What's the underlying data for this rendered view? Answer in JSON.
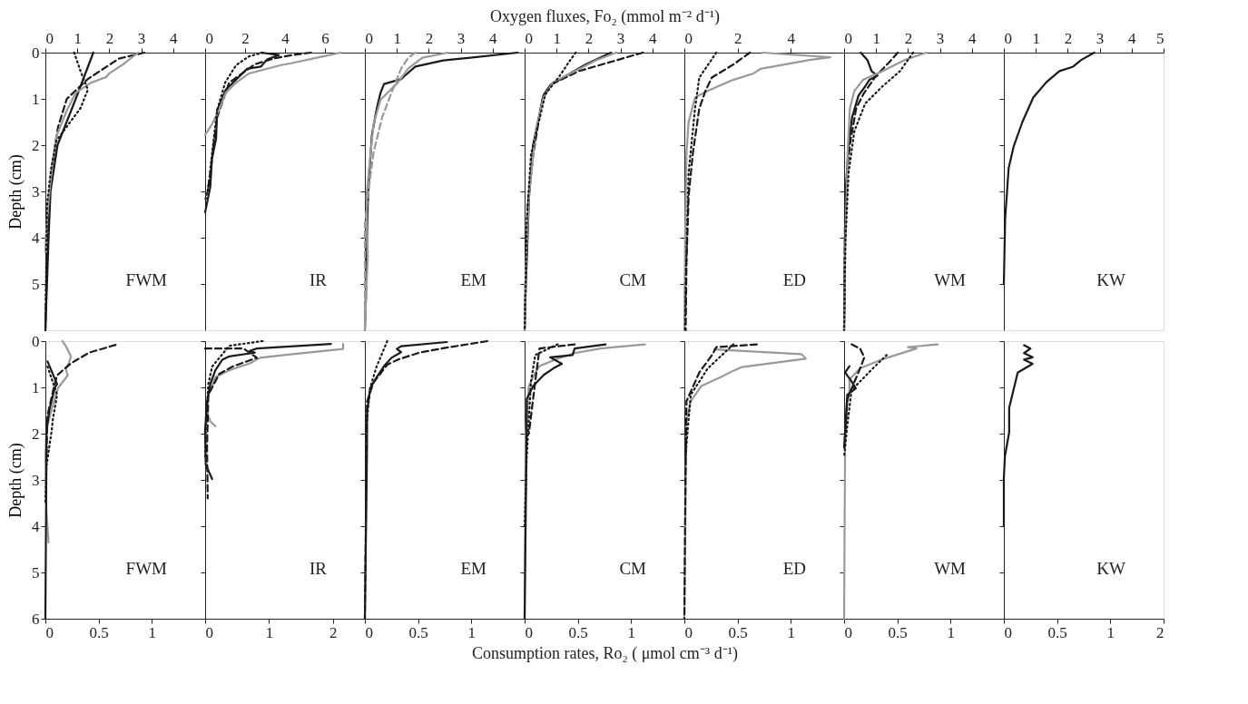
{
  "chart_data": [
    {
      "type": "line",
      "orientation": "horizontal",
      "ylabel": "Depth (cm)",
      "x2lim": [
        0,
        5
      ],
      "x2ticks": [
        0,
        1,
        2,
        3,
        4
      ],
      "ylim": [
        6,
        0
      ],
      "yticks": [
        0,
        1,
        2,
        3,
        4,
        5
      ],
      "grid": false,
      "annotations": [
        "FWM"
      ],
      "series": [
        {
          "axis": "x2",
          "color": "#1a1a1a",
          "line_style": "solid",
          "x": [
            0,
            1,
            2,
            3,
            4,
            5,
            6
          ],
          "values": [
            1.5,
            0.95,
            0.38,
            0.16,
            0.1,
            0.05,
            0
          ]
        },
        {
          "axis": "x2",
          "color": "#1a1a1a",
          "line_style": "dashed",
          "x": [
            0,
            0.13,
            0.57,
            1,
            1.6,
            2,
            3,
            4,
            5,
            6
          ],
          "values": [
            3.1,
            2.3,
            1.33,
            0.67,
            0.4,
            0.3,
            0.15,
            0.08,
            0.03,
            0
          ]
        },
        {
          "axis": "x2",
          "color": "#999999",
          "line_style": "solid",
          "x": [
            0,
            0.27,
            0.45,
            0.53,
            0.65,
            0.87,
            1.25,
            1.8,
            2.3,
            3,
            3.7,
            4.3
          ],
          "values": [
            2.9,
            2.4,
            2.0,
            1.9,
            1.43,
            0.95,
            0.67,
            0.35,
            0.24,
            0.13,
            0.04,
            0
          ]
        },
        {
          "axis": "x2",
          "color": "#1a1a1a",
          "line_style": "dotted",
          "x": [
            0,
            0.4,
            0.8,
            1.2,
            1.6,
            1.9,
            2.5,
            3.3,
            6
          ],
          "values": [
            0.9,
            1.1,
            1.33,
            1.1,
            0.67,
            0.35,
            0.18,
            0.05,
            0
          ]
        }
      ]
    },
    {
      "type": "line",
      "orientation": "horizontal",
      "x2lim": [
        0,
        8
      ],
      "x2ticks": [
        0,
        2,
        4,
        6
      ],
      "ylim": [
        6,
        0
      ],
      "yticks": [
        0,
        1,
        2,
        3,
        4,
        5
      ],
      "tick_labels": "x",
      "grid": false,
      "annotations": [
        "IR"
      ],
      "series": [
        {
          "axis": "x2",
          "color": "#1a1a1a",
          "line_style": "solid",
          "x": [
            0,
            0.05,
            0.15,
            0.3,
            0.35,
            0.8,
            1.25,
            1.86,
            2.3,
            2.9,
            3.45
          ],
          "values": [
            2.8,
            3.7,
            3.1,
            2.8,
            2.1,
            1.04,
            0.6,
            0.55,
            0.34,
            0.26,
            0
          ]
        },
        {
          "axis": "x2",
          "color": "#1a1a1a",
          "line_style": "dashed",
          "x": [
            0,
            0.05,
            0.13,
            0.25,
            0.65,
            1.4,
            2.0,
            2.6,
            3.0
          ],
          "values": [
            5.3,
            4.4,
            3.4,
            2.5,
            1.2,
            0.6,
            0.43,
            0.26,
            0.12
          ]
        },
        {
          "axis": "x2",
          "color": "#999999",
          "line_style": "solid",
          "x": [
            0,
            0.1,
            0.23,
            0.27,
            0.45,
            0.65,
            0.87,
            1.25,
            1.55,
            1.78
          ],
          "values": [
            6.8,
            5.7,
            4.3,
            3.8,
            2.2,
            1.55,
            1.03,
            0.69,
            0.34,
            0
          ]
        },
        {
          "axis": "x2",
          "color": "#1a1a1a",
          "line_style": "dotted",
          "x": [
            0,
            0.08,
            0.27,
            0.65,
            1.25,
            2.2,
            2.9,
            3.2
          ],
          "values": [
            2.9,
            2.2,
            1.55,
            1.0,
            0.6,
            0.34,
            0.17,
            0
          ]
        }
      ]
    },
    {
      "type": "line",
      "orientation": "horizontal",
      "x2lim": [
        0,
        5
      ],
      "x2ticks": [
        0,
        1,
        2,
        3,
        4
      ],
      "ylim": [
        6,
        0
      ],
      "yticks": [
        0,
        1,
        2,
        3,
        4,
        5
      ],
      "tick_labels": "x",
      "grid": false,
      "annotations": [
        "EM"
      ],
      "series": [
        {
          "axis": "x2",
          "color": "#1a1a1a",
          "line_style": "solid",
          "x": [
            0,
            0.11,
            0.17,
            0.3,
            0.5,
            0.57,
            0.68,
            0.87,
            1.18,
            1.78,
            2.6,
            3.3,
            4.8,
            6
          ],
          "values": [
            4.78,
            3.3,
            2.45,
            1.58,
            1.25,
            1.14,
            0.6,
            0.49,
            0.38,
            0.22,
            0.14,
            0.09,
            0.05,
            0
          ]
        },
        {
          "axis": "x2",
          "color": "#999999",
          "line_style": "solid",
          "x": [
            0,
            0.11,
            0.34,
            0.65,
            1.02,
            1.55,
            2.3,
            3.1,
            4.4,
            6
          ],
          "values": [
            2.6,
            1.8,
            1.36,
            1.03,
            0.49,
            0.27,
            0.16,
            0.05,
            0.09,
            0
          ]
        },
        {
          "axis": "x2",
          "color": "#999999",
          "line_style": "dashed",
          "x": [
            0,
            0.11,
            0.34,
            0.8,
            1.4,
            2.16,
            2.9,
            3.7,
            6
          ],
          "values": [
            1.58,
            1.36,
            1.14,
            0.87,
            0.54,
            0.27,
            0.13,
            0,
            0
          ]
        }
      ]
    },
    {
      "type": "line",
      "orientation": "horizontal",
      "x2label": "Oxygen fluxes, Fo₂ (mmol m⁻² d⁻¹)",
      "x2lim": [
        0,
        5
      ],
      "x2ticks": [
        0,
        1,
        2,
        3,
        4
      ],
      "ylim": [
        6,
        0
      ],
      "yticks": [
        0,
        1,
        2,
        3,
        4,
        5
      ],
      "tick_labels": "x",
      "grid": false,
      "annotations": [
        "CM"
      ],
      "series": [
        {
          "axis": "x2",
          "color": "#1a1a1a",
          "line_style": "solid",
          "x": [
            0,
            0.26,
            0.5,
            0.69,
            0.92,
            1.98,
            3.1,
            5,
            6
          ],
          "values": [
            2.7,
            1.9,
            1.3,
            0.82,
            0.59,
            0.27,
            0.14,
            0.04,
            0
          ]
        },
        {
          "axis": "x2",
          "color": "#1a1a1a",
          "line_style": "dashed",
          "x": [
            0,
            0.1,
            0.26,
            0.4,
            0.69,
            1.02,
            2.2,
            3.3,
            4.55,
            6
          ],
          "values": [
            3.7,
            3.2,
            2.4,
            1.7,
            0.82,
            0.55,
            0.27,
            0.1,
            0.04,
            0
          ]
        },
        {
          "axis": "x2",
          "color": "#999999",
          "line_style": "solid",
          "x": [
            0,
            0.16,
            0.4,
            0.64,
            0.97,
            1.7,
            3.1,
            4.55,
            6
          ],
          "values": [
            2.86,
            2.25,
            1.57,
            0.89,
            0.59,
            0.34,
            0.14,
            0.04,
            0
          ]
        },
        {
          "axis": "x2",
          "color": "#1a1a1a",
          "line_style": "dotted",
          "x": [
            0,
            0.16,
            0.5,
            0.9,
            2.2,
            3.6,
            6
          ],
          "values": [
            1.6,
            1.43,
            1.1,
            0.65,
            0.2,
            0.07,
            0
          ]
        }
      ]
    },
    {
      "type": "line",
      "orientation": "horizontal",
      "x2lim": [
        0,
        6
      ],
      "x2ticks": [
        0,
        2,
        4
      ],
      "ylim": [
        6,
        0
      ],
      "yticks": [
        0,
        1,
        2,
        3,
        4,
        5
      ],
      "tick_labels": "x",
      "grid": false,
      "annotations": [
        "ED"
      ],
      "series": [
        {
          "axis": "x2",
          "color": "#999999",
          "line_style": "solid",
          "x": [
            0,
            0.1,
            0.16,
            0.35,
            0.45,
            0.59,
            0.83,
            0.97,
            1.5,
            2.17,
            4.1,
            6
          ],
          "values": [
            2.94,
            5.48,
            4.7,
            2.86,
            2.6,
            1.83,
            0.87,
            0.4,
            0.16,
            0.08,
            0.03,
            0
          ]
        },
        {
          "axis": "x2",
          "color": "#1a1a1a",
          "line_style": "dashed",
          "x": [
            0,
            0.26,
            0.54,
            0.83,
            1.21,
            2.17,
            3.1,
            4.55,
            6
          ],
          "values": [
            2.46,
            1.83,
            1.03,
            0.79,
            0.56,
            0.32,
            0.16,
            0.08,
            0.05
          ]
        },
        {
          "axis": "x2",
          "color": "#1a1a1a",
          "line_style": "dotted",
          "x": [
            0,
            0.54,
            1.21,
            2.6,
            5,
            6
          ],
          "values": [
            1.2,
            0.56,
            0.4,
            0.16,
            0.05,
            0.03
          ]
        }
      ]
    },
    {
      "type": "line",
      "orientation": "horizontal",
      "x2lim": [
        0,
        5
      ],
      "x2ticks": [
        0,
        1,
        2,
        3,
        4
      ],
      "ylim": [
        6,
        0
      ],
      "yticks": [
        0,
        1,
        2,
        3,
        4,
        5
      ],
      "tick_labels": "x",
      "grid": false,
      "annotations": [
        "WM"
      ],
      "series": [
        {
          "axis": "x2",
          "color": "#1a1a1a",
          "line_style": "solid",
          "x": [
            0,
            0.16,
            0.4,
            0.5,
            0.59,
            0.73,
            0.93,
            1.4,
            1.98,
            3.1,
            6
          ],
          "values": [
            0.52,
            0.73,
            0.86,
            1.04,
            0.79,
            0.66,
            0.45,
            0.25,
            0.14,
            0.04,
            0
          ]
        },
        {
          "axis": "x2",
          "color": "#1a1a1a",
          "line_style": "dashed",
          "x": [
            0,
            0.21,
            0.5,
            0.9,
            1.2,
            1.9,
            2.5,
            3.5,
            6
          ],
          "values": [
            1.68,
            1.41,
            1.0,
            0.6,
            0.38,
            0.2,
            0.1,
            0.03,
            0
          ]
        },
        {
          "axis": "x2",
          "color": "#999999",
          "line_style": "solid",
          "x": [
            0,
            0.16,
            0.4,
            0.59,
            0.83,
            1.21,
            2.17,
            4.1,
            6
          ],
          "values": [
            2.58,
            1.89,
            1.2,
            0.59,
            0.32,
            0.18,
            0.11,
            0.04,
            0
          ]
        },
        {
          "axis": "x2",
          "color": "#1a1a1a",
          "line_style": "dotted",
          "x": [
            0,
            0.4,
            0.73,
            1.1,
            1.7,
            2.6,
            4.1,
            6
          ],
          "values": [
            2.16,
            1.75,
            1.2,
            0.66,
            0.32,
            0.14,
            0.04,
            0
          ]
        }
      ]
    },
    {
      "type": "line",
      "orientation": "horizontal",
      "x2lim": [
        0,
        5
      ],
      "x2ticks": [
        0,
        1,
        2,
        3,
        4,
        5
      ],
      "ylim": [
        6,
        0
      ],
      "yticks": [
        0,
        1,
        2,
        3,
        4,
        5
      ],
      "tick_labels": "x",
      "grid": false,
      "annotations": [
        "KW"
      ],
      "series": [
        {
          "axis": "x2",
          "color": "#1a1a1a",
          "line_style": "solid",
          "x": [
            0,
            0.16,
            0.31,
            0.4,
            0.64,
            0.97,
            1.5,
            2.02,
            2.5,
            3.6,
            5
          ],
          "values": [
            2.83,
            2.42,
            2.15,
            1.74,
            1.33,
            0.92,
            0.58,
            0.31,
            0.15,
            0.04,
            0
          ]
        }
      ]
    },
    {
      "type": "line",
      "orientation": "horizontal",
      "ylabel": "Depth (cm)",
      "xlim": [
        0,
        1.5
      ],
      "xticks": [
        0,
        0.5,
        1
      ],
      "ylim": [
        6,
        0
      ],
      "yticks": [
        0,
        1,
        2,
        3,
        4,
        5,
        6
      ],
      "grid": false,
      "annotations": [
        "FWM"
      ],
      "series": [
        {
          "color": "#999999",
          "line_style": "solid",
          "x": [
            0,
            0.1,
            0.33,
            0.48,
            0.59,
            0.74,
            1.01,
            1.46,
            1.92,
            2.5,
            3.7,
            4.35
          ],
          "values": [
            0.16,
            0.19,
            0.24,
            0.22,
            0.19,
            0.21,
            0.12,
            0.06,
            0.01,
            0,
            0.01,
            0.03
          ]
        },
        {
          "color": "#1a1a1a",
          "line_style": "dashed",
          "x": [
            0.08,
            0.25,
            0.48,
            0.74,
            0.9,
            1.6,
            2.5
          ],
          "values": [
            0.66,
            0.41,
            0.24,
            0.11,
            0.09,
            0.02,
            0.01
          ]
        },
        {
          "color": "#1a1a1a",
          "line_style": "solid",
          "x": [
            0.44,
            0.93,
            1.0,
            1.46,
            1.92,
            2.5,
            6
          ],
          "values": [
            0.02,
            0.11,
            0.09,
            0.04,
            0.01,
            0.01,
            0
          ]
        },
        {
          "color": "#1a1a1a",
          "line_style": "dotted",
          "x": [
            0.55,
            1.16,
            1.69,
            1.92,
            2.7,
            3.5
          ],
          "values": [
            0.02,
            0.11,
            0.07,
            0.06,
            0.01,
            0
          ]
        }
      ]
    },
    {
      "type": "line",
      "orientation": "horizontal",
      "xlim": [
        0,
        2.5
      ],
      "xticks": [
        0,
        1,
        2
      ],
      "ylim": [
        6,
        0
      ],
      "yticks": [
        0,
        1,
        2,
        3,
        4,
        5,
        6
      ],
      "tick_labels": "x",
      "grid": false,
      "annotations": [
        "IR"
      ],
      "series": [
        {
          "color": "#999999",
          "line_style": "solid",
          "x": [
            0.06,
            0.17,
            0.29,
            0.36,
            0.48,
            0.63,
            0.78,
            1.16,
            1.54,
            1.73,
            1.84
          ],
          "values": [
            2.16,
            2.16,
            1.3,
            0.86,
            0.7,
            0.38,
            0.16,
            0.05,
            0.03,
            0.08,
            0.16
          ]
        },
        {
          "color": "#1a1a1a",
          "line_style": "solid",
          "x": [
            0.06,
            0.16,
            0.21,
            0.25,
            0.33,
            0.4,
            0.63,
            0.93,
            1.31,
            1.92,
            2.67,
            2.98
          ],
          "values": [
            1.97,
            0.81,
            0.7,
            0.78,
            0.38,
            0.27,
            0.16,
            0.08,
            0.03,
            0,
            0.01,
            0.11
          ]
        },
        {
          "color": "#1a1a1a",
          "line_style": "dashed",
          "x": [
            0.16,
            0.16,
            0.36,
            0.55,
            0.71,
            1.16,
            2.3,
            3.4
          ],
          "values": [
            0,
            0.6,
            0.81,
            0.43,
            0.22,
            0.05,
            0.03,
            0.04
          ]
        },
        {
          "color": "#1a1a1a",
          "line_style": "dotted",
          "x": [
            0,
            0.1,
            0.55,
            0.93,
            1.92,
            2.5
          ],
          "values": [
            0.9,
            0.38,
            0.11,
            0.05,
            0.01,
            0
          ]
        }
      ]
    },
    {
      "type": "line",
      "orientation": "horizontal",
      "xlim": [
        0,
        1.5
      ],
      "xticks": [
        0,
        0.5,
        1
      ],
      "ylim": [
        6,
        0
      ],
      "yticks": [
        0,
        1,
        2,
        3,
        4,
        5,
        6
      ],
      "tick_labels": "x",
      "grid": false,
      "annotations": [
        "EM"
      ],
      "series": [
        {
          "color": "#1a1a1a",
          "line_style": "solid",
          "x": [
            0.02,
            0.11,
            0.17,
            0.24,
            0.36,
            0.54,
            0.78,
            1.02,
            1.54,
            2.3,
            6
          ],
          "values": [
            0.77,
            0.34,
            0.3,
            0.34,
            0.25,
            0.18,
            0.11,
            0.05,
            0.02,
            0.02,
            0
          ]
        },
        {
          "color": "#1a1a1a",
          "line_style": "dashed",
          "x": [
            0,
            0.14,
            0.25,
            0.4,
            0.51,
            0.9,
            1.31,
            6
          ],
          "values": [
            1.15,
            0.77,
            0.51,
            0.31,
            0.21,
            0.08,
            0.02,
            0
          ]
        },
        {
          "color": "#1a1a1a",
          "line_style": "dotted",
          "x": [
            0,
            0.55,
            1.0,
            1.92
          ],
          "values": [
            0.21,
            0.11,
            0.05,
            0.01
          ]
        }
      ]
    },
    {
      "type": "line",
      "orientation": "horizontal",
      "xlabel": "Consumption rates, Ro₂ ( μmol cm⁻³ d⁻¹)",
      "xlim": [
        0,
        1.5
      ],
      "xticks": [
        0,
        0.5,
        1
      ],
      "ylim": [
        6,
        0
      ],
      "yticks": [
        0,
        1,
        2,
        3,
        4,
        5,
        6
      ],
      "tick_labels": "x",
      "grid": false,
      "annotations": [
        "CM"
      ],
      "series": [
        {
          "color": "#999999",
          "line_style": "solid",
          "x": [
            0.07,
            0.16,
            0.26,
            0.38,
            0.54,
            0.68,
            0.97,
            2.0,
            6
          ],
          "values": [
            1.13,
            0.71,
            0.47,
            0.31,
            0.14,
            0.1,
            0.04,
            0.01,
            0
          ]
        },
        {
          "color": "#1a1a1a",
          "line_style": "solid",
          "x": [
            0.07,
            0.16,
            0.3,
            0.35,
            0.49,
            0.59,
            0.73,
            0.97,
            1.25,
            1.73,
            6
          ],
          "values": [
            0.76,
            0.47,
            0.45,
            0.24,
            0.35,
            0.27,
            0.18,
            0.08,
            0.02,
            0.02,
            0
          ]
        },
        {
          "color": "#1a1a1a",
          "line_style": "dashed",
          "x": [
            0.07,
            0.16,
            0.87,
            2.0
          ],
          "values": [
            0.47,
            0.14,
            0.1,
            0.04
          ]
        },
        {
          "color": "#1a1a1a",
          "line_style": "dotted",
          "x": [
            0.07,
            0.3,
            0.87,
            2.5,
            4
          ],
          "values": [
            0.31,
            0.1,
            0.06,
            0.02,
            0
          ]
        }
      ]
    },
    {
      "type": "line",
      "orientation": "horizontal",
      "xlim": [
        0,
        1.5
      ],
      "xticks": [
        0,
        0.5,
        1
      ],
      "ylim": [
        6,
        0
      ],
      "yticks": [
        0,
        1,
        2,
        3,
        4,
        5,
        6
      ],
      "tick_labels": "x",
      "grid": false,
      "annotations": [
        "ED"
      ],
      "series": [
        {
          "color": "#999999",
          "line_style": "solid",
          "x": [
            0.18,
            0.28,
            0.38,
            0.56,
            0.64,
            0.78,
            0.97,
            1.3,
            1.73,
            6
          ],
          "values": [
            0.28,
            1.1,
            1.14,
            0.54,
            0.46,
            0.34,
            0.16,
            0.06,
            0.02,
            0
          ]
        },
        {
          "color": "#1a1a1a",
          "line_style": "dashed",
          "x": [
            0.07,
            0.13,
            0.3,
            0.68,
            1.3,
            2.96,
            6
          ],
          "values": [
            0.68,
            0.3,
            0.26,
            0.14,
            0.02,
            0.01,
            0
          ]
        },
        {
          "color": "#1a1a1a",
          "line_style": "dotted",
          "x": [
            0.07,
            0.59,
            1.16,
            2.5
          ],
          "values": [
            0.46,
            0.22,
            0.06,
            0.01
          ]
        }
      ]
    },
    {
      "type": "line",
      "orientation": "horizontal",
      "xlim": [
        0,
        1.5
      ],
      "xticks": [
        0,
        0.5,
        1
      ],
      "ylim": [
        6,
        0
      ],
      "yticks": [
        0,
        1,
        2,
        3,
        4,
        5,
        6
      ],
      "tick_labels": "x",
      "grid": false,
      "annotations": [
        "WM"
      ],
      "series": [
        {
          "color": "#999999",
          "line_style": "solid",
          "x": [
            0.07,
            0.13,
            0.16,
            0.4,
            0.59,
            0.83,
            1.06,
            1.35,
            2.0,
            6
          ],
          "values": [
            0.88,
            0.6,
            0.68,
            0.35,
            0.15,
            0.05,
            0.05,
            0.03,
            0.01,
            0
          ]
        },
        {
          "color": "#1a1a1a",
          "line_style": "solid",
          "x": [
            0.54,
            0.68,
            0.87,
            1.02,
            1.16,
            1.54,
            2.3
          ],
          "values": [
            0.05,
            0.01,
            0.07,
            0.11,
            0.03,
            0.02,
            0
          ]
        },
        {
          "color": "#1a1a1a",
          "line_style": "dashed",
          "x": [
            0.07,
            0.16,
            0.35,
            0.59,
            1.25,
            2.0
          ],
          "values": [
            0.07,
            0.15,
            0.19,
            0.15,
            0.03,
            0.01
          ]
        },
        {
          "color": "#1a1a1a",
          "line_style": "dotted",
          "x": [
            0.3,
            0.59,
            1.06,
            1.82,
            2.5
          ],
          "values": [
            0.4,
            0.27,
            0.07,
            0.03,
            0
          ]
        }
      ]
    },
    {
      "type": "line",
      "orientation": "horizontal",
      "xlim": [
        0,
        1.5
      ],
      "xticks": [
        0,
        0.5,
        1,
        {
          "value": 1.5,
          "label": "2"
        }
      ],
      "ylim": [
        6,
        0
      ],
      "yticks": [
        0,
        1,
        2,
        3,
        4,
        5,
        6
      ],
      "tick_labels": "x",
      "grid": false,
      "annotations": [
        "KW"
      ],
      "series": [
        {
          "color": "#1a1a1a",
          "line_style": "solid",
          "x": [
            0.09,
            0.16,
            0.26,
            0.35,
            0.4,
            0.49,
            0.68,
            1.44,
            1.97,
            2.49,
            2.96,
            4.0
          ],
          "values": [
            0.19,
            0.25,
            0.19,
            0.27,
            0.19,
            0.27,
            0.13,
            0.05,
            0.05,
            0.01,
            0,
            0
          ]
        }
      ]
    }
  ]
}
